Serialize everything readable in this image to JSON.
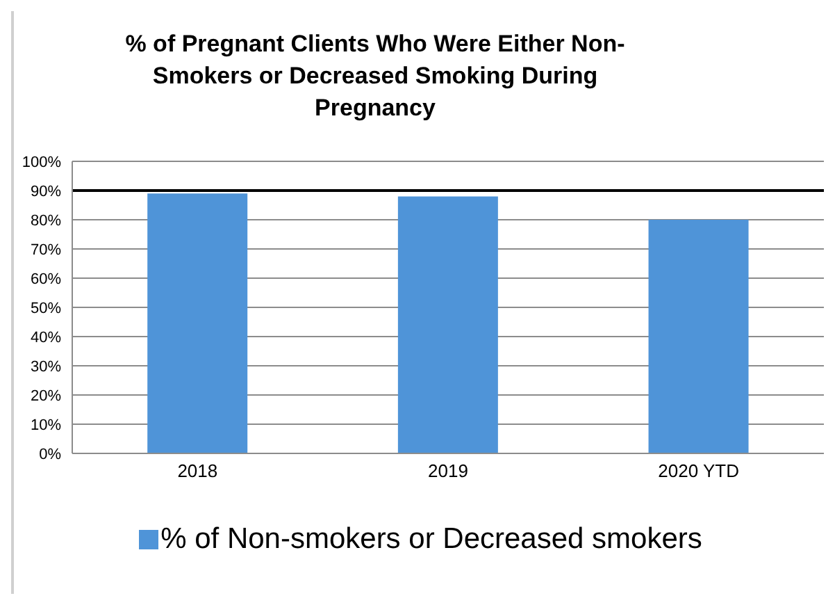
{
  "chart_data": {
    "type": "bar",
    "title": "% of Pregnant Clients Who Were Either Non-Smokers or Decreased Smoking During Pregnancy",
    "categories": [
      "2018",
      "2019",
      "2020 YTD"
    ],
    "series": [
      {
        "name": "% of Non-smokers or Decreased smokers",
        "color": "#4f94d8",
        "values": [
          89,
          88,
          80
        ]
      }
    ],
    "ylim": [
      0,
      100
    ],
    "yticks": [
      {
        "value": 0,
        "label": "0%"
      },
      {
        "value": 10,
        "label": "10%"
      },
      {
        "value": 20,
        "label": "20%"
      },
      {
        "value": 30,
        "label": "30%"
      },
      {
        "value": 40,
        "label": "40%"
      },
      {
        "value": 50,
        "label": "50%"
      },
      {
        "value": 60,
        "label": "60%"
      },
      {
        "value": 70,
        "label": "70%"
      },
      {
        "value": 80,
        "label": "80%"
      },
      {
        "value": 90,
        "label": "90%"
      },
      {
        "value": 100,
        "label": "100%"
      }
    ],
    "ref_lines": [
      {
        "axis": "y",
        "value": 90,
        "color": "#000000"
      }
    ],
    "grid": "y",
    "legend": "bottom"
  }
}
